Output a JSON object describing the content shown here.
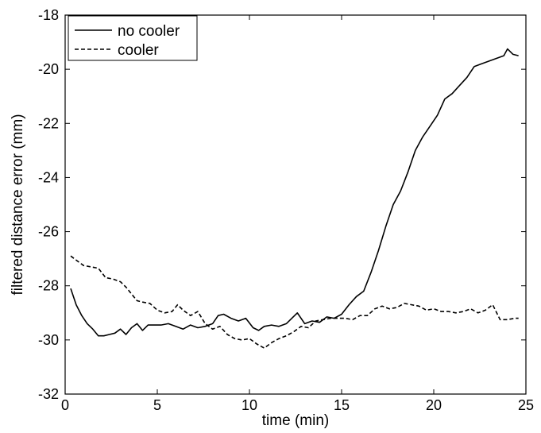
{
  "chart_data": {
    "type": "line",
    "title": "",
    "xlabel": "time (min)",
    "ylabel": "filtered distance error (mm)",
    "xlim": [
      0,
      25
    ],
    "ylim": [
      -32,
      -18
    ],
    "xticks": [
      0,
      5,
      10,
      15,
      20,
      25
    ],
    "yticks": [
      -32,
      -30,
      -28,
      -26,
      -24,
      -22,
      -20,
      -18
    ],
    "grid": false,
    "legend_position": "top-left",
    "series": [
      {
        "name": "no cooler",
        "line_style": "solid",
        "color": "#000000",
        "points": [
          [
            0.3,
            -28.1
          ],
          [
            0.6,
            -28.7
          ],
          [
            0.9,
            -29.1
          ],
          [
            1.2,
            -29.4
          ],
          [
            1.5,
            -29.6
          ],
          [
            1.8,
            -29.85
          ],
          [
            2.1,
            -29.85
          ],
          [
            2.4,
            -29.8
          ],
          [
            2.7,
            -29.75
          ],
          [
            3.0,
            -29.6
          ],
          [
            3.3,
            -29.8
          ],
          [
            3.6,
            -29.55
          ],
          [
            3.9,
            -29.4
          ],
          [
            4.2,
            -29.65
          ],
          [
            4.5,
            -29.45
          ],
          [
            4.8,
            -29.45
          ],
          [
            5.2,
            -29.45
          ],
          [
            5.6,
            -29.4
          ],
          [
            6.0,
            -29.5
          ],
          [
            6.4,
            -29.6
          ],
          [
            6.8,
            -29.45
          ],
          [
            7.2,
            -29.55
          ],
          [
            7.6,
            -29.5
          ],
          [
            8.0,
            -29.4
          ],
          [
            8.3,
            -29.1
          ],
          [
            8.6,
            -29.05
          ],
          [
            9.0,
            -29.2
          ],
          [
            9.4,
            -29.3
          ],
          [
            9.8,
            -29.2
          ],
          [
            10.2,
            -29.55
          ],
          [
            10.5,
            -29.65
          ],
          [
            10.8,
            -29.5
          ],
          [
            11.2,
            -29.45
          ],
          [
            11.6,
            -29.5
          ],
          [
            12.0,
            -29.4
          ],
          [
            12.3,
            -29.2
          ],
          [
            12.6,
            -29.0
          ],
          [
            13.0,
            -29.4
          ],
          [
            13.4,
            -29.3
          ],
          [
            13.8,
            -29.35
          ],
          [
            14.2,
            -29.15
          ],
          [
            14.6,
            -29.2
          ],
          [
            15.0,
            -29.05
          ],
          [
            15.4,
            -28.7
          ],
          [
            15.8,
            -28.4
          ],
          [
            16.2,
            -28.2
          ],
          [
            16.6,
            -27.5
          ],
          [
            17.0,
            -26.7
          ],
          [
            17.4,
            -25.8
          ],
          [
            17.8,
            -25.0
          ],
          [
            18.2,
            -24.5
          ],
          [
            18.6,
            -23.8
          ],
          [
            19.0,
            -23.0
          ],
          [
            19.4,
            -22.5
          ],
          [
            19.8,
            -22.1
          ],
          [
            20.2,
            -21.7
          ],
          [
            20.6,
            -21.1
          ],
          [
            21.0,
            -20.9
          ],
          [
            21.4,
            -20.6
          ],
          [
            21.8,
            -20.3
          ],
          [
            22.2,
            -19.9
          ],
          [
            22.6,
            -19.8
          ],
          [
            23.0,
            -19.7
          ],
          [
            23.4,
            -19.6
          ],
          [
            23.8,
            -19.5
          ],
          [
            24.0,
            -19.25
          ],
          [
            24.3,
            -19.45
          ],
          [
            24.6,
            -19.5
          ]
        ]
      },
      {
        "name": "cooler",
        "line_style": "dashed",
        "color": "#000000",
        "points": [
          [
            0.3,
            -26.9
          ],
          [
            0.7,
            -27.1
          ],
          [
            1.0,
            -27.25
          ],
          [
            1.4,
            -27.3
          ],
          [
            1.8,
            -27.35
          ],
          [
            2.2,
            -27.7
          ],
          [
            2.6,
            -27.75
          ],
          [
            3.0,
            -27.85
          ],
          [
            3.3,
            -28.05
          ],
          [
            3.6,
            -28.3
          ],
          [
            3.9,
            -28.55
          ],
          [
            4.2,
            -28.6
          ],
          [
            4.6,
            -28.65
          ],
          [
            5.0,
            -28.9
          ],
          [
            5.4,
            -29.0
          ],
          [
            5.8,
            -28.95
          ],
          [
            6.1,
            -28.7
          ],
          [
            6.4,
            -28.9
          ],
          [
            6.8,
            -29.1
          ],
          [
            7.2,
            -28.95
          ],
          [
            7.6,
            -29.4
          ],
          [
            8.0,
            -29.6
          ],
          [
            8.4,
            -29.5
          ],
          [
            8.8,
            -29.8
          ],
          [
            9.2,
            -29.95
          ],
          [
            9.6,
            -30.0
          ],
          [
            10.0,
            -29.95
          ],
          [
            10.4,
            -30.15
          ],
          [
            10.8,
            -30.3
          ],
          [
            11.2,
            -30.1
          ],
          [
            11.6,
            -29.95
          ],
          [
            12.0,
            -29.85
          ],
          [
            12.4,
            -29.7
          ],
          [
            12.8,
            -29.5
          ],
          [
            13.2,
            -29.55
          ],
          [
            13.6,
            -29.3
          ],
          [
            14.0,
            -29.25
          ],
          [
            14.4,
            -29.2
          ],
          [
            14.8,
            -29.2
          ],
          [
            15.2,
            -29.2
          ],
          [
            15.6,
            -29.25
          ],
          [
            16.0,
            -29.1
          ],
          [
            16.4,
            -29.1
          ],
          [
            16.8,
            -28.85
          ],
          [
            17.2,
            -28.75
          ],
          [
            17.6,
            -28.85
          ],
          [
            18.0,
            -28.8
          ],
          [
            18.4,
            -28.65
          ],
          [
            18.8,
            -28.7
          ],
          [
            19.2,
            -28.75
          ],
          [
            19.6,
            -28.9
          ],
          [
            20.0,
            -28.85
          ],
          [
            20.4,
            -28.95
          ],
          [
            20.8,
            -28.95
          ],
          [
            21.2,
            -29.0
          ],
          [
            21.6,
            -28.95
          ],
          [
            22.0,
            -28.85
          ],
          [
            22.4,
            -29.0
          ],
          [
            22.8,
            -28.9
          ],
          [
            23.2,
            -28.7
          ],
          [
            23.6,
            -29.25
          ],
          [
            24.0,
            -29.25
          ],
          [
            24.4,
            -29.2
          ],
          [
            24.6,
            -29.2
          ]
        ]
      }
    ]
  }
}
